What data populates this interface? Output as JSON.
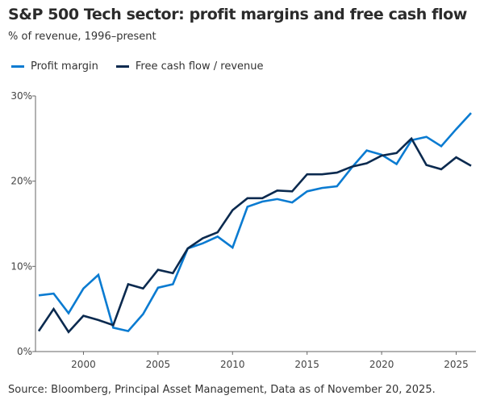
{
  "chart_data": {
    "type": "line",
    "title": "S&P 500 Tech sector: profit margins and free cash flow",
    "subtitle": "% of revenue, 1996–present",
    "xlabel": "",
    "ylabel": "",
    "x": [
      1997,
      1998,
      1999,
      2000,
      2001,
      2002,
      2003,
      2004,
      2005,
      2006,
      2007,
      2008,
      2009,
      2010,
      2011,
      2012,
      2013,
      2014,
      2015,
      2016,
      2017,
      2018,
      2019,
      2020,
      2021,
      2022,
      2023,
      2024,
      2025,
      2026
    ],
    "xlim": [
      1997,
      2026
    ],
    "ylim": [
      0,
      30
    ],
    "x_ticks": [
      "2000",
      "2005",
      "2010",
      "2015",
      "2020",
      "2025"
    ],
    "x_tick_values": [
      2000,
      2005,
      2010,
      2015,
      2020,
      2025
    ],
    "y_ticks": [
      "0%",
      "10%",
      "20%",
      "30%"
    ],
    "y_tick_values": [
      0,
      10,
      20,
      30
    ],
    "grid": false,
    "legend_position": "top-left",
    "series": [
      {
        "name": "Profit margin",
        "color": "#0a7bd1",
        "values": [
          6.6,
          6.8,
          4.5,
          7.4,
          9.0,
          2.8,
          2.4,
          4.4,
          7.5,
          7.9,
          12.1,
          12.7,
          13.5,
          12.2,
          17.0,
          17.6,
          17.9,
          17.5,
          18.8,
          19.2,
          19.4,
          21.6,
          23.6,
          23.1,
          22.0,
          24.8,
          25.2,
          24.1,
          26.1,
          28.0
        ]
      },
      {
        "name": "Free cash flow / revenue",
        "color": "#0b2a4f",
        "values": [
          2.4,
          5.0,
          2.3,
          4.2,
          3.7,
          3.1,
          7.9,
          7.4,
          9.6,
          9.2,
          12.1,
          13.3,
          14.0,
          16.6,
          18.0,
          18.0,
          18.9,
          18.8,
          20.8,
          20.8,
          21.0,
          21.7,
          22.1,
          23.0,
          23.3,
          25.0,
          21.9,
          21.4,
          22.8,
          21.8
        ]
      }
    ]
  },
  "source": "Source: Bloomberg, Principal Asset Management, Data as of November 20, 2025."
}
